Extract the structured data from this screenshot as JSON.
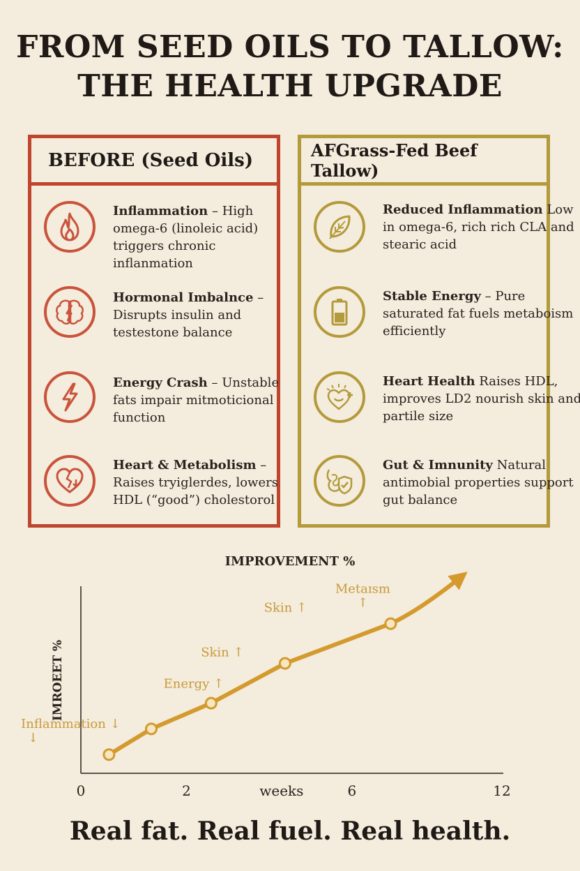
{
  "title": {
    "line1": "FROM SEED OILS TO TALLOW:",
    "line2": "THE HEALTH UPGRADE"
  },
  "before": {
    "heading": "BEFORE (Seed Oils)",
    "items": [
      {
        "icon": "flame-icon",
        "title": "Inflammation",
        "text": " – High omega-6 (linoleic acid) triggers chronic inflanmation"
      },
      {
        "icon": "brain-lightning-icon",
        "title": "Hormonal Imbalnce",
        "text": " – Disrupts insulin and testestone balance"
      },
      {
        "icon": "lightning-bolt-icon",
        "title": "Energy Crash",
        "text": " – Unstable fats impair mitmoticional function"
      },
      {
        "icon": "broken-heart-icon",
        "title": "Heart & Metabolism",
        "text": " – Raises tryiglerdes, lowers HDL (“good”) cholestorol"
      }
    ]
  },
  "after": {
    "heading": "AFGrass-Fed Beef Tallow)",
    "items": [
      {
        "icon": "leaf-icon",
        "title": "Reduced Inflammation",
        "text": " Low in omega-6, rich rich CLA and stearic acid"
      },
      {
        "icon": "battery-icon",
        "title": "Stable Energy",
        "text": " – Pure saturated fat fuels metaboism efficiently"
      },
      {
        "icon": "heart-sparkle-icon",
        "title": "Heart Health",
        "text": " Raises HDL, improves LD2 nourish skin and partile size"
      },
      {
        "icon": "gut-shield-icon",
        "title": "Gut & Imnunity",
        "text": " Natural antimobial properties support gut balance"
      }
    ]
  },
  "chart_data": {
    "type": "line",
    "title": "IMPROVEMENT %",
    "ylabel": "IMROEET %",
    "xlabel": "weeks",
    "x_ticks": [
      "0",
      "2",
      "weeks",
      "6",
      "12"
    ],
    "points": [
      {
        "x": 0.8,
        "y": 8
      },
      {
        "x": 2.0,
        "y": 19
      },
      {
        "x": 3.7,
        "y": 30
      },
      {
        "x": 5.8,
        "y": 47
      },
      {
        "x": 8.8,
        "y": 64
      }
    ],
    "arrow_end": {
      "x": 10.8,
      "y": 84
    },
    "annotations": [
      {
        "text": "Inflammation ↓",
        "sub": "↓",
        "x": 0.8,
        "y": 8
      },
      {
        "text": "Energy ↑",
        "x": 3.7,
        "y": 30
      },
      {
        "text": "Skin ↑",
        "x": 5.8,
        "y": 47
      },
      {
        "text": "Skin ↑",
        "x": 6.8,
        "y": 56
      },
      {
        "text": "Metaɪsm",
        "sub": "↑",
        "x": 8.8,
        "y": 64
      }
    ],
    "xlim": [
      0,
      12
    ],
    "ylim": [
      0,
      80
    ],
    "colors": {
      "line": "#d49a2e",
      "axis": "#2a221c",
      "label": "#c79a3a"
    }
  },
  "tagline": "Real fat. Real fuel. Real health."
}
